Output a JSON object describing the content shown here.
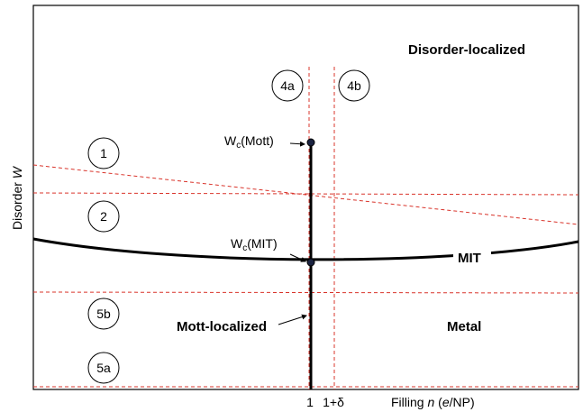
{
  "regions": {
    "disorder_localized": "Disorder-localized",
    "metal": "Metal",
    "mott_localized": "Mott-localized",
    "mit": "MIT"
  },
  "circles": [
    "4a",
    "4b",
    "1",
    "2",
    "5b",
    "5a"
  ],
  "critical_points": {
    "mott_prefix": "W",
    "mott_sub": "c",
    "mott_suffix": "(Mott)",
    "mit_prefix": "W",
    "mit_sub": "c",
    "mit_suffix": "(MIT)"
  },
  "axes": {
    "y_label_prefix": "Disorder ",
    "y_label_var": "W",
    "x_label_prefix": "Filling ",
    "x_label_var": "n",
    "x_label_mid": " (",
    "x_label_unit_var": "e",
    "x_label_suffix": "/NP)",
    "tick_1": "1",
    "tick_2": "1+δ"
  },
  "colors": {
    "dashed": "#d9342b",
    "line": "#000000"
  }
}
